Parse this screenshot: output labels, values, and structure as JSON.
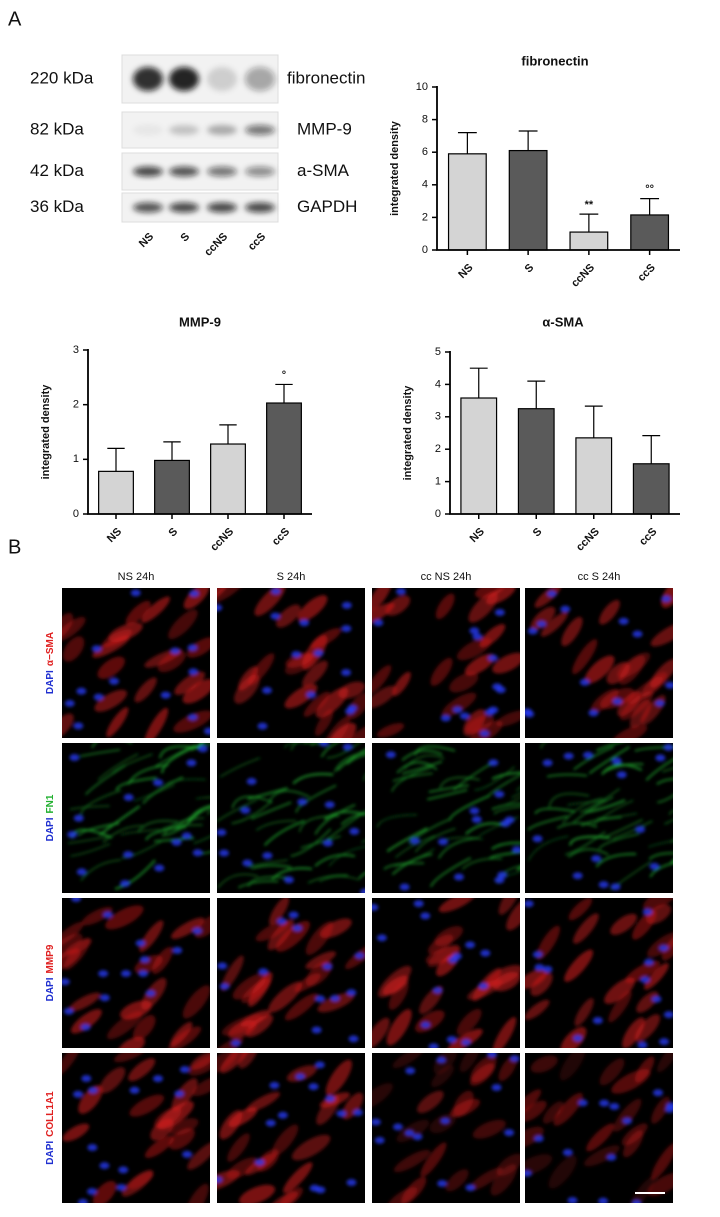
{
  "panels": {
    "a": "A",
    "b": "B"
  },
  "blot": {
    "markers": [
      "220 kDa",
      "82 kDa",
      "42 kDa",
      "36 kDa"
    ],
    "proteins": [
      "fibronectin",
      "MMP-9",
      "a-SMA",
      "GAPDH"
    ],
    "lanes": [
      "NS",
      "S",
      "ccNS",
      "ccS"
    ]
  },
  "chart_data": [
    {
      "type": "bar",
      "title": "fibronectin",
      "ylabel": "integrated density",
      "categories": [
        "NS",
        "S",
        "ccNS",
        "ccS"
      ],
      "values": [
        5.9,
        6.1,
        1.1,
        2.15
      ],
      "errors": [
        1.3,
        1.2,
        1.1,
        1.0
      ],
      "colors": [
        "#d4d4d4",
        "#5a5a5a",
        "#d4d4d4",
        "#5a5a5a"
      ],
      "annotations": [
        null,
        null,
        "**",
        "°°"
      ],
      "ylim": [
        0,
        10
      ],
      "yticks": [
        0,
        2,
        4,
        6,
        8,
        10
      ]
    },
    {
      "type": "bar",
      "title": "MMP-9",
      "ylabel": "integrated density",
      "categories": [
        "NS",
        "S",
        "ccNS",
        "ccS"
      ],
      "values": [
        0.78,
        0.98,
        1.28,
        2.03
      ],
      "errors": [
        0.42,
        0.34,
        0.35,
        0.34
      ],
      "colors": [
        "#d4d4d4",
        "#5a5a5a",
        "#d4d4d4",
        "#5a5a5a"
      ],
      "annotations": [
        null,
        null,
        null,
        "°"
      ],
      "ylim": [
        0,
        3
      ],
      "yticks": [
        0,
        1,
        2,
        3
      ]
    },
    {
      "type": "bar",
      "title": "α-SMA",
      "ylabel": "integrated density",
      "categories": [
        "NS",
        "S",
        "ccNS",
        "ccS"
      ],
      "values": [
        3.58,
        3.25,
        2.35,
        1.55
      ],
      "errors": [
        0.92,
        0.85,
        0.98,
        0.87
      ],
      "colors": [
        "#d4d4d4",
        "#5a5a5a",
        "#d4d4d4",
        "#5a5a5a"
      ],
      "annotations": [
        null,
        null,
        null,
        null
      ],
      "ylim": [
        0,
        5
      ],
      "yticks": [
        0,
        1,
        2,
        3,
        4,
        5
      ]
    }
  ],
  "microscopy": {
    "columns": [
      "NS 24h",
      "S 24h",
      "cc NS 24h",
      "cc S 24h"
    ],
    "rows": [
      {
        "dapi": "DAPI",
        "stain": "α−SMA",
        "color": "#e02020"
      },
      {
        "dapi": "DAPI",
        "stain": "FN1",
        "color": "#22b030"
      },
      {
        "dapi": "DAPI",
        "stain": "MMP9",
        "color": "#e02020"
      },
      {
        "dapi": "DAPI",
        "stain": "COLL1A1",
        "color": "#e02020"
      }
    ]
  }
}
